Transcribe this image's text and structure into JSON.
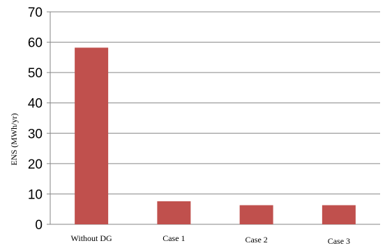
{
  "chart_data": {
    "type": "bar",
    "title": "",
    "xlabel": "",
    "ylabel": "ENS (MWh/yr)",
    "ylim": [
      0,
      70
    ],
    "yticks": [
      0,
      10,
      20,
      30,
      40,
      50,
      60,
      70
    ],
    "categories": [
      "Without DG",
      "Case 1",
      "Case 2",
      "Case 3"
    ],
    "values": [
      58.2,
      7.6,
      6.3,
      6.3
    ],
    "bar_color": "#c0504d",
    "grid": true,
    "legend": "none"
  }
}
